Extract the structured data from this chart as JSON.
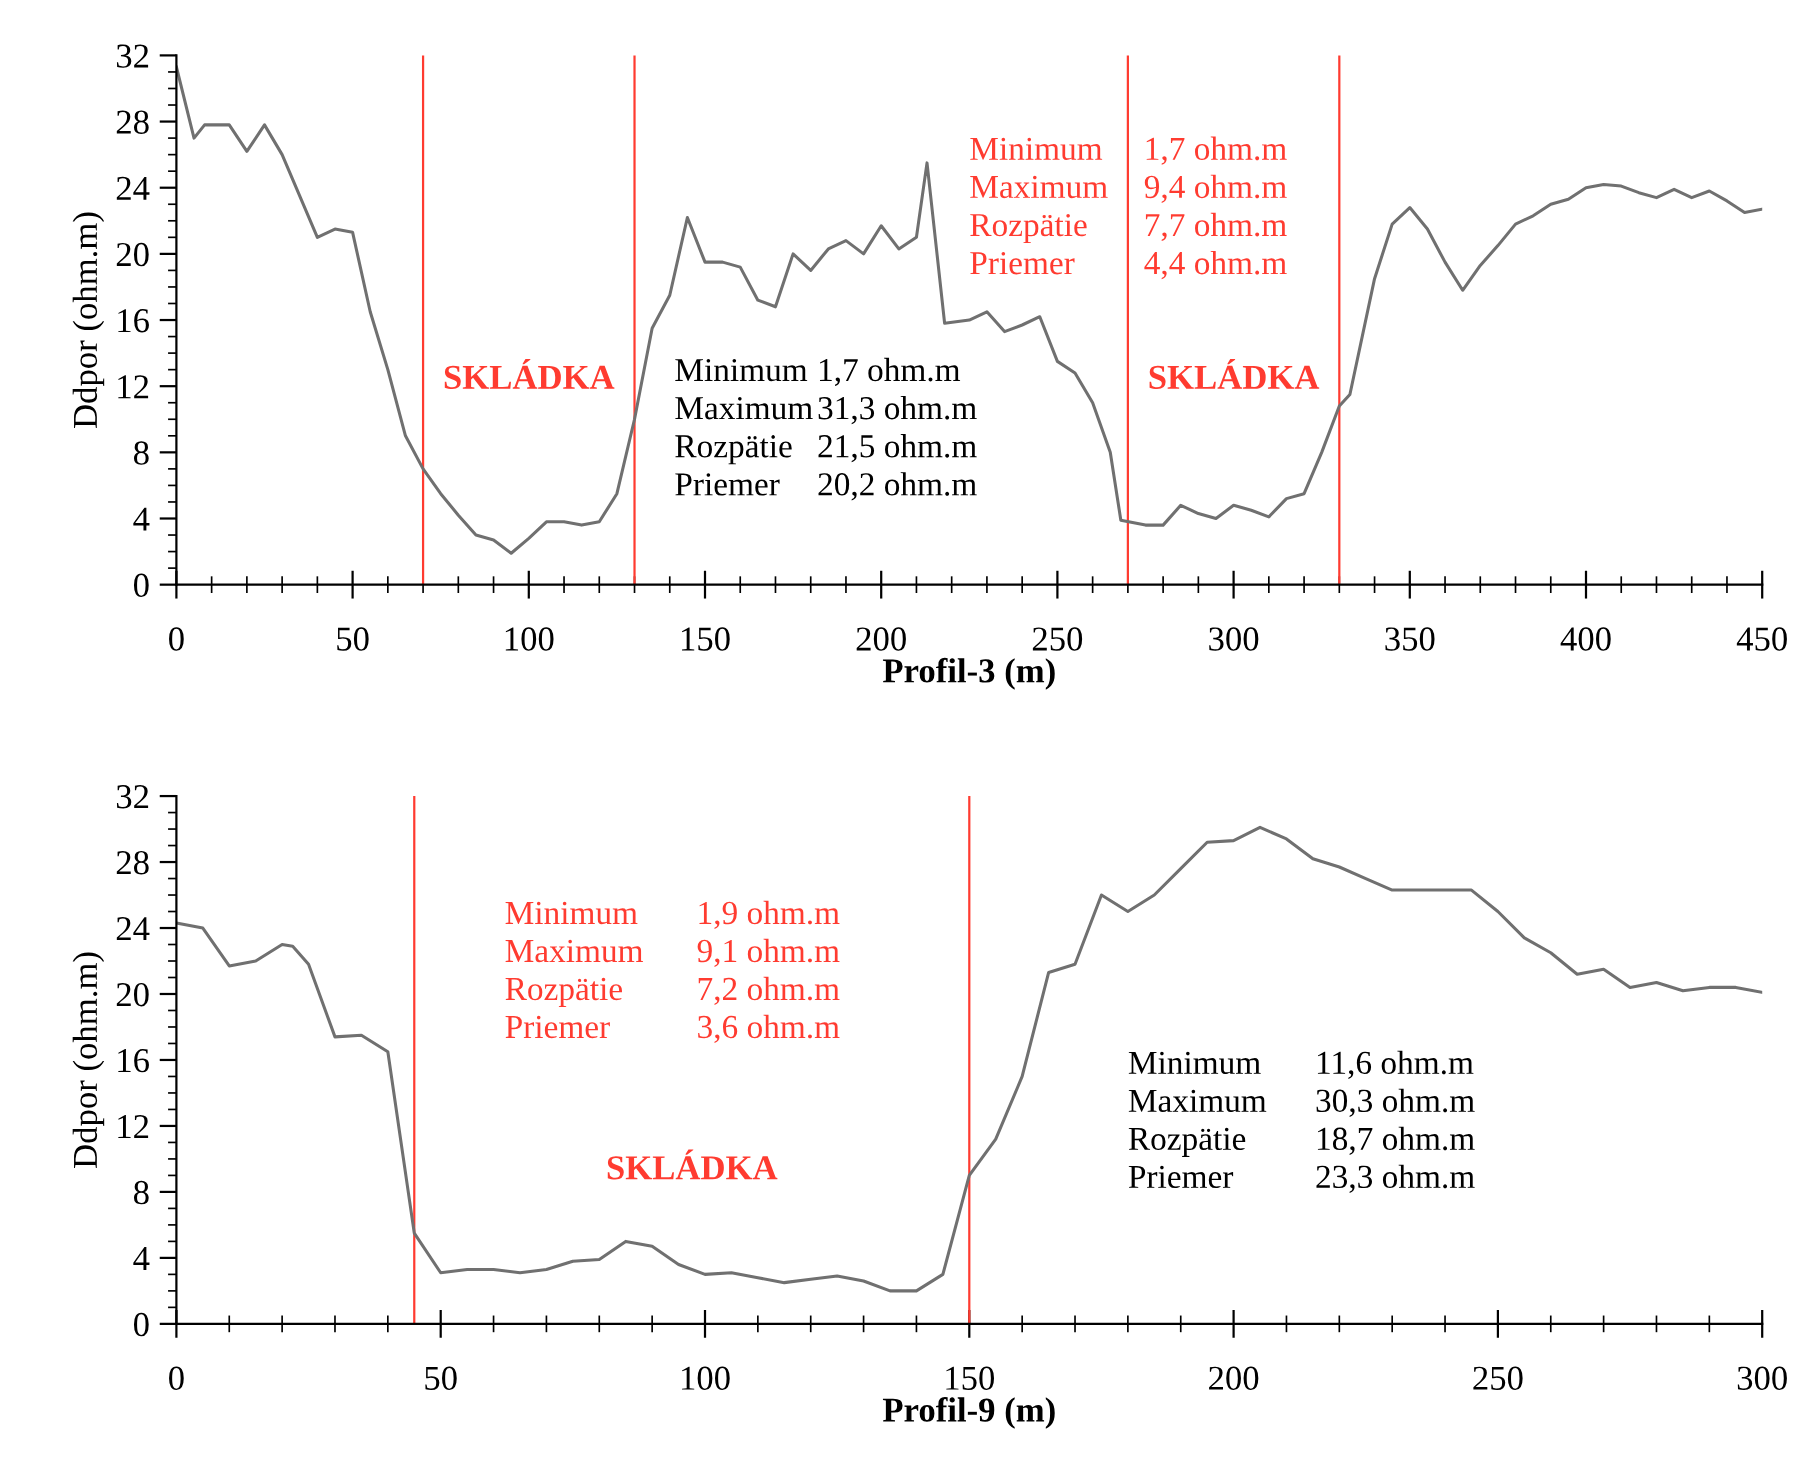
{
  "chart_data": [
    {
      "type": "line",
      "xlabel": "Profil-3 (m)",
      "ylabel": "Ddpor (ohm.m)",
      "x": [
        0,
        5,
        8,
        15,
        20,
        25,
        30,
        40,
        45,
        50,
        55,
        60,
        65,
        70,
        75,
        80,
        85,
        90,
        95,
        100,
        105,
        110,
        115,
        120,
        125,
        130,
        135,
        140,
        145,
        150,
        155,
        160,
        165,
        170,
        175,
        180,
        185,
        190,
        195,
        200,
        205,
        210,
        213,
        218,
        225,
        230,
        235,
        240,
        245,
        250,
        255,
        260,
        265,
        268,
        275,
        280,
        285,
        290,
        295,
        300,
        305,
        310,
        315,
        320,
        325,
        330,
        333,
        340,
        345,
        350,
        355,
        360,
        365,
        370,
        375,
        380,
        385,
        390,
        395,
        400,
        405,
        410,
        415,
        420,
        425,
        430,
        435,
        440,
        445,
        450
      ],
      "series": [
        {
          "color": "#707070",
          "values": [
            31.3,
            27,
            27.8,
            27.8,
            26.2,
            27.8,
            26,
            21,
            21.5,
            21.3,
            16.5,
            13,
            9,
            7,
            5.5,
            4.2,
            3,
            2.7,
            1.9,
            2.8,
            3.8,
            3.8,
            3.6,
            3.8,
            5.5,
            10,
            15.5,
            17.5,
            22.2,
            19.5,
            19.5,
            19.2,
            17.2,
            16.8,
            20,
            19,
            20.3,
            20.8,
            20,
            21.7,
            20.3,
            21,
            25.5,
            15.8,
            16,
            16.5,
            15.3,
            15.7,
            16.2,
            13.5,
            12.8,
            11,
            8,
            3.9,
            3.6,
            3.6,
            4.8,
            4.3,
            4,
            4.8,
            4.5,
            4.1,
            5.2,
            5.5,
            8,
            10.8,
            11.5,
            18.5,
            21.8,
            22.8,
            21.5,
            19.5,
            17.8,
            19.3,
            20.5,
            21.8,
            22.3,
            23,
            23.3,
            24,
            24.2,
            24.1,
            23.7,
            23.4,
            23.9,
            23.4,
            23.8,
            23.2,
            22.5,
            22.7
          ]
        }
      ],
      "xlim": [
        0,
        450
      ],
      "xticks": [
        0,
        50,
        100,
        150,
        200,
        250,
        300,
        350,
        400,
        450
      ],
      "ylim": [
        0,
        32
      ],
      "yticks": [
        0,
        4,
        8,
        12,
        16,
        20,
        24,
        28,
        32
      ],
      "grid": false,
      "legend": false,
      "marker": "none",
      "line_style": "solid",
      "ref_lines": [
        {
          "axis": "x",
          "value": 70,
          "color": "#ff3b30",
          "label": "SKLÁDKA"
        },
        {
          "axis": "x",
          "value": 130,
          "color": "#ff3b30"
        },
        {
          "axis": "x",
          "value": 270,
          "color": "#ff3b30",
          "label": "SKLÁDKA"
        },
        {
          "axis": "x",
          "value": 330,
          "color": "#ff3b30"
        }
      ],
      "annotations": [
        "Minimum 1,7 ohm.m",
        "Maximum 9,4 ohm.m",
        "Rozpätie 7,7 ohm.m",
        "Priemer 4,4 ohm.m",
        "Minimum 1,7 ohm.m",
        "Maximum 31,3 ohm.m",
        "Rozpätie 21,5 ohm.m",
        "Priemer 20,2 ohm.m"
      ]
    },
    {
      "type": "line",
      "xlabel": "Profil-9 (m)",
      "ylabel": "Ddpor (ohm.m)",
      "x": [
        0,
        5,
        10,
        15,
        20,
        22,
        25,
        30,
        35,
        40,
        45,
        50,
        55,
        60,
        65,
        70,
        75,
        80,
        85,
        90,
        95,
        100,
        105,
        110,
        115,
        120,
        125,
        130,
        135,
        140,
        145,
        150,
        155,
        160,
        165,
        170,
        175,
        180,
        185,
        190,
        195,
        200,
        205,
        210,
        215,
        220,
        225,
        230,
        240,
        245,
        250,
        255,
        260,
        265,
        270,
        275,
        280,
        285,
        290,
        295,
        300
      ],
      "series": [
        {
          "color": "#707070",
          "values": [
            24.3,
            24,
            21.7,
            22,
            23,
            22.9,
            21.8,
            17.4,
            17.5,
            16.5,
            5.5,
            3.1,
            3.3,
            3.3,
            3.1,
            3.3,
            3.8,
            3.9,
            5,
            4.7,
            3.6,
            3,
            3.1,
            2.8,
            2.5,
            2.7,
            2.9,
            2.6,
            2,
            2,
            3,
            9,
            11.2,
            15,
            21.3,
            21.8,
            26,
            25,
            26,
            27.6,
            29.2,
            29.3,
            30.1,
            29.4,
            28.2,
            27.7,
            27,
            26.3,
            26.3,
            26.3,
            25,
            23.4,
            22.5,
            21.2,
            21.5,
            20.4,
            20.7,
            20.2,
            20.4,
            20.4,
            20.1
          ]
        }
      ],
      "xlim": [
        0,
        300
      ],
      "xticks": [
        0,
        50,
        100,
        150,
        200,
        250,
        300
      ],
      "ylim": [
        0,
        32
      ],
      "yticks": [
        0,
        4,
        8,
        12,
        16,
        20,
        24,
        28,
        32
      ],
      "grid": false,
      "legend": false,
      "marker": "none",
      "line_style": "solid",
      "ref_lines": [
        {
          "axis": "x",
          "value": 45,
          "color": "#ff3b30",
          "label": "SKLÁDKA"
        },
        {
          "axis": "x",
          "value": 150,
          "color": "#ff3b30"
        }
      ],
      "annotations": [
        "Minimum 1,9 ohm.m",
        "Maximum 9,1 ohm.m",
        "Rozpätie 7,2 ohm.m",
        "Priemer 3,6 ohm.m",
        "Minimum 11,6 ohm.m",
        "Maximum 30,3 ohm.m",
        "Rozpätie 18,7 ohm.m",
        "Priemer 23,3 ohm.m"
      ]
    }
  ]
}
